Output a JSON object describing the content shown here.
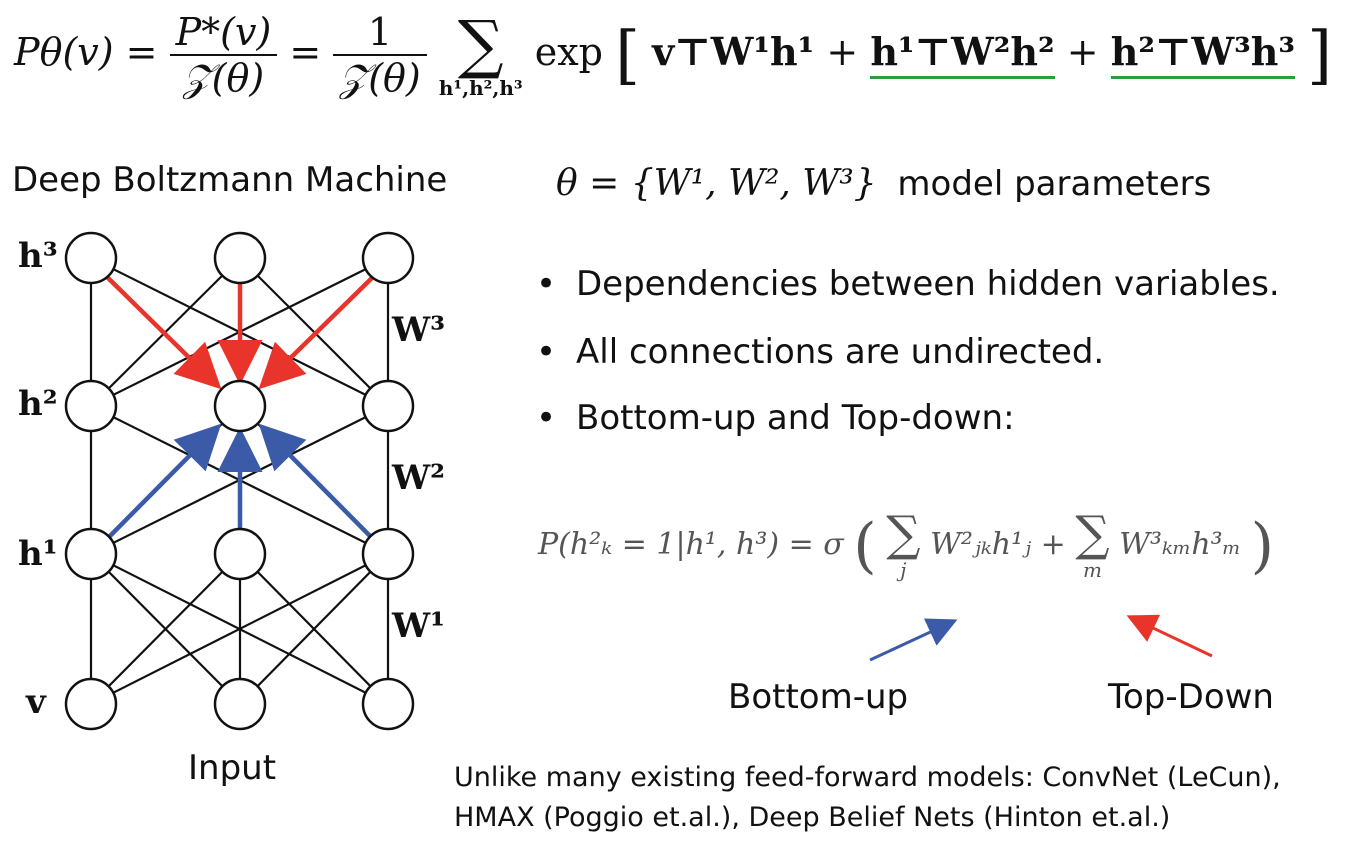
{
  "top_equation": {
    "lhs": "Pθ(v)",
    "frac1_num": "P*(v)",
    "frac1_den": "𝒵(θ)",
    "frac2_num": "1",
    "frac2_den": "𝒵(θ)",
    "sum_symbol": "∑",
    "sum_limits": "h¹,h²,h³",
    "exp_word": "exp",
    "term1": "v⊤W¹h¹",
    "term2": "h¹⊤W²h²",
    "term3": "h²⊤W³h³",
    "underline_color": "#2e9b3c"
  },
  "diagram": {
    "title": "Deep Boltzmann Machine",
    "input_label": "Input",
    "layer_labels": [
      "h³",
      "h²",
      "h¹",
      "v"
    ],
    "weight_labels": [
      "W³",
      "W²",
      "W¹"
    ],
    "top_down_color": "#e8342b",
    "bottom_up_color": "#3b5aa8"
  },
  "params": {
    "formula": "θ = {W¹, W², W³}",
    "label": "model parameters"
  },
  "bullets": [
    "Dependencies between hidden variables.",
    "All connections are undirected.",
    "Bottom-up and Top-down:"
  ],
  "conditional": {
    "lhs": "P(h²ₖ = 1|h¹, h³) = σ",
    "sum1": "∑",
    "sum1_index": "j",
    "term1": "W²ⱼₖh¹ⱼ",
    "plus": "+",
    "sum2": "∑",
    "sum2_index": "m",
    "term2": "W³ₖₘh³ₘ"
  },
  "arrow_labels": {
    "bottom_up": "Bottom-up",
    "top_down": "Top-Down"
  },
  "footer": {
    "line1": "Unlike many existing feed-forward models: ConvNet (LeCun),",
    "line2": "HMAX (Poggio et.al.), Deep Belief Nets (Hinton et.al.)"
  }
}
